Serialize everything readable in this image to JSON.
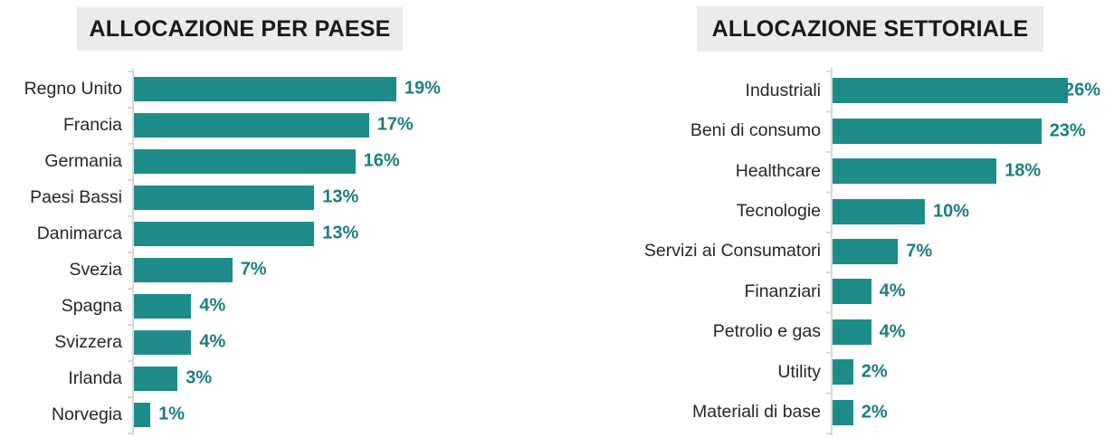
{
  "page": {
    "background": "#ffffff"
  },
  "chart_data": [
    {
      "type": "bar",
      "orientation": "horizontal",
      "title": "ALLOCAZIONE PER PAESE",
      "categories": [
        "Regno Unito",
        "Francia",
        "Germania",
        "Paesi Bassi",
        "Danimarca",
        "Svezia",
        "Spagna",
        "Svizzera",
        "Irlanda",
        "Norvegia"
      ],
      "values": [
        19,
        17,
        16,
        13,
        13,
        7,
        4,
        4,
        3,
        1
      ],
      "value_labels": [
        "19%",
        "17%",
        "16%",
        "13%",
        "13%",
        "7%",
        "4%",
        "4%",
        "3%",
        "1%"
      ],
      "unit": "%",
      "xlabel": "",
      "ylabel": "",
      "grid": false,
      "legend": false,
      "value_axis_visible": false,
      "bar_color": "#1e8c8a",
      "value_label_color": "#1d7e7d",
      "category_label_color": "#262626",
      "axis_color": "#d9d9d9",
      "title_bg": "#ebebeb",
      "title_color": "#1a1a1a"
    },
    {
      "type": "bar",
      "orientation": "horizontal",
      "title": "ALLOCAZIONE SETTORIALE",
      "categories": [
        "Industriali",
        "Beni di consumo",
        "Healthcare",
        "Tecnologie",
        "Servizi ai Consumatori",
        "Finanziari",
        "Petrolio e gas",
        "Utility",
        "Materiali di base"
      ],
      "values": [
        26,
        23,
        18,
        10,
        7,
        4,
        4,
        2,
        2
      ],
      "value_labels": [
        "26%",
        "23%",
        "18%",
        "10%",
        "7%",
        "4%",
        "4%",
        "2%",
        "2%"
      ],
      "unit": "%",
      "xlabel": "",
      "ylabel": "",
      "grid": false,
      "legend": false,
      "value_axis_visible": false,
      "bar_color": "#1e8c8a",
      "value_label_color": "#1d7e7d",
      "category_label_color": "#262626",
      "axis_color": "#d9d9d9",
      "title_bg": "#ebebeb",
      "title_color": "#1a1a1a"
    }
  ]
}
